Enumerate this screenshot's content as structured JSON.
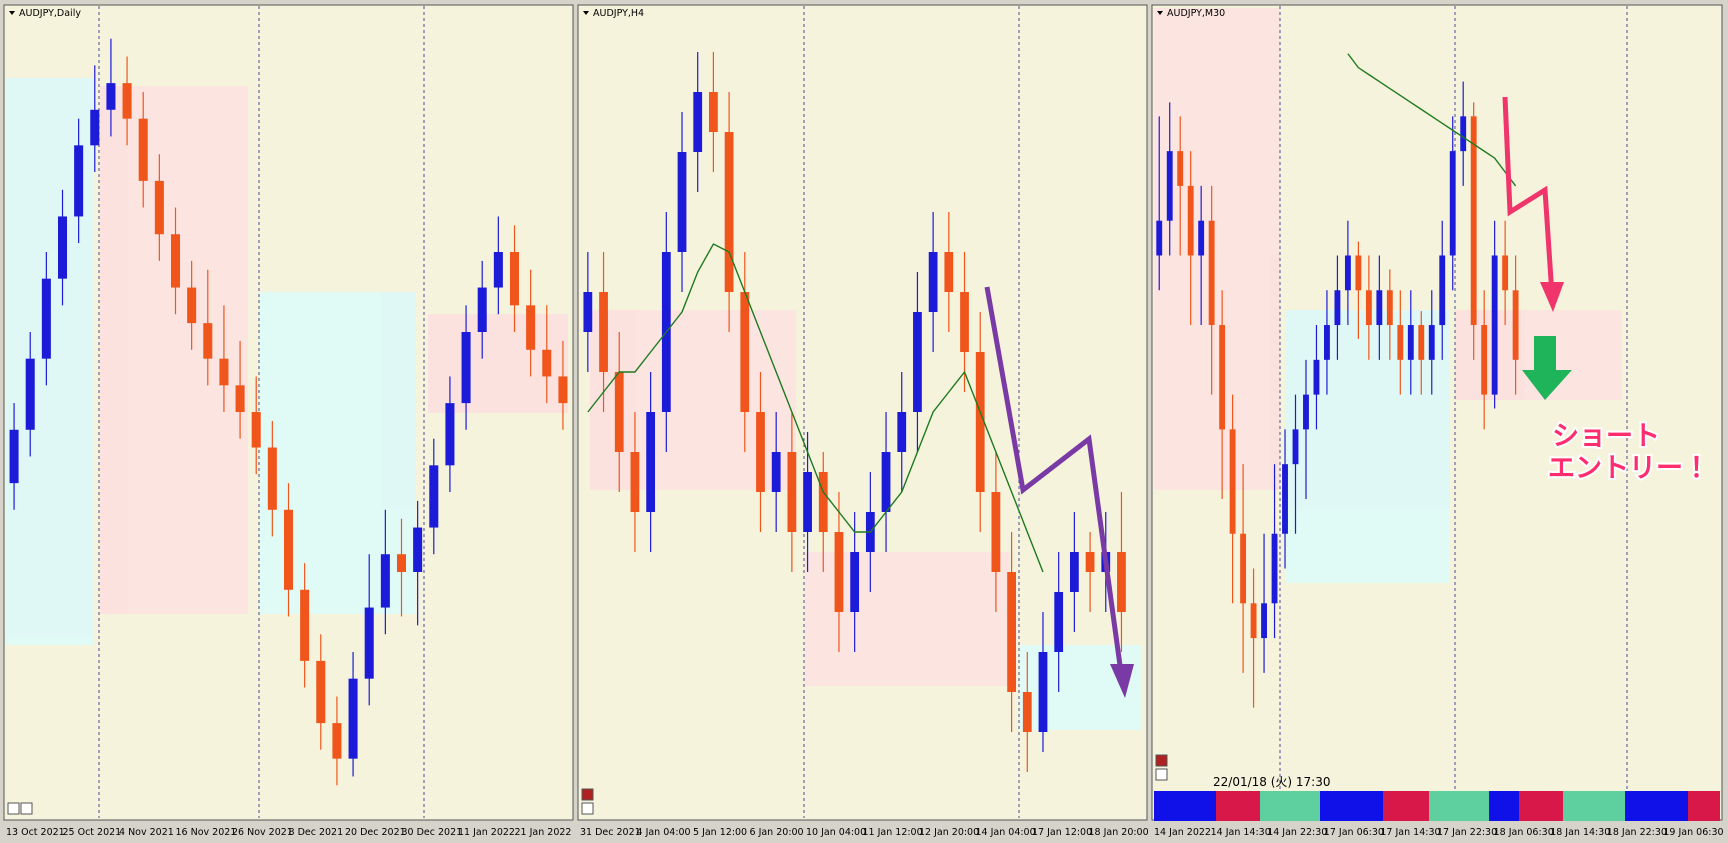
{
  "chart_data": [
    {
      "type": "candlestick",
      "title": "AUDJPY,Daily",
      "bull_color": "#1c1cd8",
      "bear_color": "#f0561c",
      "ylim": [
        77.5,
        86.5
      ],
      "x_labels": [
        "13 Oct 2021",
        "25 Oct 2021",
        "4 Nov 2021",
        "16 Nov 2021",
        "26 Nov 2021",
        "8 Dec 2021",
        "20 Dec 2021",
        "30 Dec 2021",
        "11 Jan 2022",
        "21 Jan 2022"
      ],
      "ohlc": [
        [
          81.2,
          82.1,
          80.9,
          81.8
        ],
        [
          81.8,
          82.9,
          81.5,
          82.6
        ],
        [
          82.6,
          83.8,
          82.3,
          83.5
        ],
        [
          83.5,
          84.5,
          83.2,
          84.2
        ],
        [
          84.2,
          85.3,
          83.9,
          85.0
        ],
        [
          85.0,
          85.9,
          84.7,
          85.4
        ],
        [
          85.4,
          86.2,
          85.1,
          85.7
        ],
        [
          85.7,
          86.0,
          85.0,
          85.3
        ],
        [
          85.3,
          85.6,
          84.3,
          84.6
        ],
        [
          84.6,
          84.9,
          83.7,
          84.0
        ],
        [
          84.0,
          84.3,
          83.1,
          83.4
        ],
        [
          83.4,
          83.7,
          82.7,
          83.0
        ],
        [
          83.0,
          83.6,
          82.3,
          82.6
        ],
        [
          82.6,
          83.2,
          82.0,
          82.3
        ],
        [
          82.3,
          82.8,
          81.7,
          82.0
        ],
        [
          82.0,
          82.4,
          81.3,
          81.6
        ],
        [
          81.6,
          81.9,
          80.6,
          80.9
        ],
        [
          80.9,
          81.2,
          79.7,
          80.0
        ],
        [
          80.0,
          80.3,
          78.9,
          79.2
        ],
        [
          79.2,
          79.5,
          78.2,
          78.5
        ],
        [
          78.5,
          78.8,
          77.8,
          78.1
        ],
        [
          78.1,
          79.3,
          77.9,
          79.0
        ],
        [
          79.0,
          80.4,
          78.7,
          79.8
        ],
        [
          79.8,
          80.9,
          79.5,
          80.4
        ],
        [
          80.4,
          80.8,
          79.7,
          80.2
        ],
        [
          80.2,
          81.0,
          79.6,
          80.7
        ],
        [
          80.7,
          81.7,
          80.4,
          81.4
        ],
        [
          81.4,
          82.4,
          81.1,
          82.1
        ],
        [
          82.1,
          83.2,
          81.8,
          82.9
        ],
        [
          82.9,
          83.7,
          82.6,
          83.4
        ],
        [
          83.4,
          84.2,
          83.1,
          83.8
        ],
        [
          83.8,
          84.1,
          82.9,
          83.2
        ],
        [
          83.2,
          83.6,
          82.4,
          82.7
        ],
        [
          82.7,
          83.2,
          82.1,
          82.4
        ],
        [
          82.4,
          82.8,
          81.8,
          82.1
        ]
      ]
    },
    {
      "type": "candlestick",
      "title": "AUDJPY,H4",
      "bull_color": "#1c1cd8",
      "bear_color": "#f0561c",
      "ma_color": "#1e7a1e",
      "ylim": [
        82.3,
        84.3
      ],
      "x_labels": [
        "31 Dec 2021",
        "4 Jan 04:00",
        "5 Jan 12:00",
        "6 Jan 20:00",
        "10 Jan 04:00",
        "11 Jan 12:00",
        "12 Jan 20:00",
        "14 Jan 04:00",
        "17 Jan 12:00",
        "18 Jan 20:00"
      ],
      "ohlc": [
        [
          83.5,
          83.7,
          83.4,
          83.6
        ],
        [
          83.6,
          83.7,
          83.3,
          83.4
        ],
        [
          83.4,
          83.5,
          83.1,
          83.2
        ],
        [
          83.2,
          83.3,
          82.95,
          83.05
        ],
        [
          83.05,
          83.4,
          82.95,
          83.3
        ],
        [
          83.3,
          83.8,
          83.2,
          83.7
        ],
        [
          83.7,
          84.05,
          83.6,
          83.95
        ],
        [
          83.95,
          84.2,
          83.85,
          84.1
        ],
        [
          84.1,
          84.2,
          83.9,
          84.0
        ],
        [
          84.0,
          84.1,
          83.5,
          83.6
        ],
        [
          83.6,
          83.7,
          83.2,
          83.3
        ],
        [
          83.3,
          83.4,
          83.0,
          83.1
        ],
        [
          83.1,
          83.3,
          83.0,
          83.2
        ],
        [
          83.2,
          83.3,
          82.9,
          83.0
        ],
        [
          83.0,
          83.25,
          82.9,
          83.15
        ],
        [
          83.15,
          83.2,
          82.9,
          83.0
        ],
        [
          83.0,
          83.1,
          82.7,
          82.8
        ],
        [
          82.8,
          83.05,
          82.7,
          82.95
        ],
        [
          82.95,
          83.15,
          82.85,
          83.05
        ],
        [
          83.05,
          83.3,
          82.95,
          83.2
        ],
        [
          83.2,
          83.4,
          83.1,
          83.3
        ],
        [
          83.3,
          83.65,
          83.2,
          83.55
        ],
        [
          83.55,
          83.8,
          83.45,
          83.7
        ],
        [
          83.7,
          83.8,
          83.5,
          83.6
        ],
        [
          83.6,
          83.7,
          83.35,
          83.45
        ],
        [
          83.45,
          83.55,
          83.0,
          83.1
        ],
        [
          83.1,
          83.2,
          82.8,
          82.9
        ],
        [
          82.9,
          83.0,
          82.5,
          82.6
        ],
        [
          82.6,
          82.7,
          82.4,
          82.5
        ],
        [
          82.5,
          82.8,
          82.45,
          82.7
        ],
        [
          82.7,
          82.95,
          82.6,
          82.85
        ],
        [
          82.85,
          83.05,
          82.75,
          82.95
        ],
        [
          82.95,
          83.0,
          82.8,
          82.9
        ],
        [
          82.9,
          83.05,
          82.8,
          82.95
        ],
        [
          82.95,
          83.1,
          82.7,
          82.8
        ]
      ],
      "ma": [
        83.3,
        83.35,
        83.4,
        83.4,
        83.45,
        83.5,
        83.55,
        83.65,
        83.72,
        83.7,
        83.6,
        83.5,
        83.4,
        83.3,
        83.2,
        83.1,
        83.05,
        83.0,
        83.0,
        83.05,
        83.1,
        83.2,
        83.3,
        83.35,
        83.4,
        83.3,
        83.2,
        83.1,
        83.0,
        82.9,
        null,
        null,
        null,
        null,
        null
      ]
    },
    {
      "type": "candlestick",
      "title": "AUDJPY,M30",
      "bull_color": "#1c1cd8",
      "bear_color": "#f0561c",
      "ma_color": "#1e7a1e",
      "ylim": [
        82.3,
        83.45
      ],
      "x_labels": [
        "14 Jan 2022",
        "14 Jan 14:30",
        "14 Jan 22:30",
        "17 Jan 06:30",
        "17 Jan 14:30",
        "17 Jan 22:30",
        "18 Jan 06:30",
        "18 Jan 14:30",
        "18 Jan 22:30",
        "19 Jan 06:30"
      ],
      "ohlc": [
        [
          83.1,
          83.3,
          83.05,
          83.15
        ],
        [
          83.15,
          83.32,
          83.1,
          83.25
        ],
        [
          83.25,
          83.3,
          83.1,
          83.2
        ],
        [
          83.2,
          83.25,
          83.0,
          83.1
        ],
        [
          83.1,
          83.2,
          83.0,
          83.15
        ],
        [
          83.15,
          83.2,
          82.9,
          83.0
        ],
        [
          83.0,
          83.05,
          82.75,
          82.85
        ],
        [
          82.85,
          82.9,
          82.6,
          82.7
        ],
        [
          82.7,
          82.8,
          82.5,
          82.6
        ],
        [
          82.6,
          82.65,
          82.45,
          82.55
        ],
        [
          82.55,
          82.7,
          82.5,
          82.6
        ],
        [
          82.6,
          82.8,
          82.55,
          82.7
        ],
        [
          82.7,
          82.85,
          82.65,
          82.8
        ],
        [
          82.8,
          82.9,
          82.7,
          82.85
        ],
        [
          82.85,
          82.95,
          82.75,
          82.9
        ],
        [
          82.9,
          83.0,
          82.85,
          82.95
        ],
        [
          82.95,
          83.05,
          82.9,
          83.0
        ],
        [
          83.0,
          83.1,
          82.95,
          83.05
        ],
        [
          83.05,
          83.15,
          83.0,
          83.1
        ],
        [
          83.1,
          83.12,
          82.98,
          83.05
        ],
        [
          83.05,
          83.1,
          82.95,
          83.0
        ],
        [
          83.0,
          83.1,
          82.95,
          83.05
        ],
        [
          83.05,
          83.08,
          82.95,
          83.0
        ],
        [
          83.0,
          83.05,
          82.9,
          82.95
        ],
        [
          82.95,
          83.05,
          82.9,
          83.0
        ],
        [
          83.0,
          83.02,
          82.9,
          82.95
        ],
        [
          82.95,
          83.05,
          82.9,
          83.0
        ],
        [
          83.0,
          83.15,
          82.95,
          83.1
        ],
        [
          83.1,
          83.3,
          83.05,
          83.25
        ],
        [
          83.25,
          83.35,
          83.2,
          83.3
        ],
        [
          83.3,
          83.32,
          82.95,
          83.0
        ],
        [
          83.0,
          83.05,
          82.85,
          82.9
        ],
        [
          82.9,
          83.15,
          82.88,
          83.1
        ],
        [
          83.1,
          83.15,
          83.0,
          83.05
        ],
        [
          83.05,
          83.1,
          82.9,
          82.95
        ]
      ],
      "ma": [
        null,
        null,
        null,
        null,
        null,
        null,
        null,
        null,
        null,
        null,
        null,
        null,
        null,
        null,
        null,
        null,
        null,
        null,
        83.39,
        83.37,
        83.36,
        83.35,
        83.34,
        83.33,
        83.32,
        83.31,
        83.3,
        83.29,
        83.28,
        83.27,
        83.26,
        83.25,
        83.24,
        83.22,
        83.2
      ]
    }
  ],
  "annotation": {
    "lines": [
      "ショート",
      "エントリー！"
    ]
  },
  "status": {
    "timestamp": "22/01/18 (火) 17:30"
  }
}
